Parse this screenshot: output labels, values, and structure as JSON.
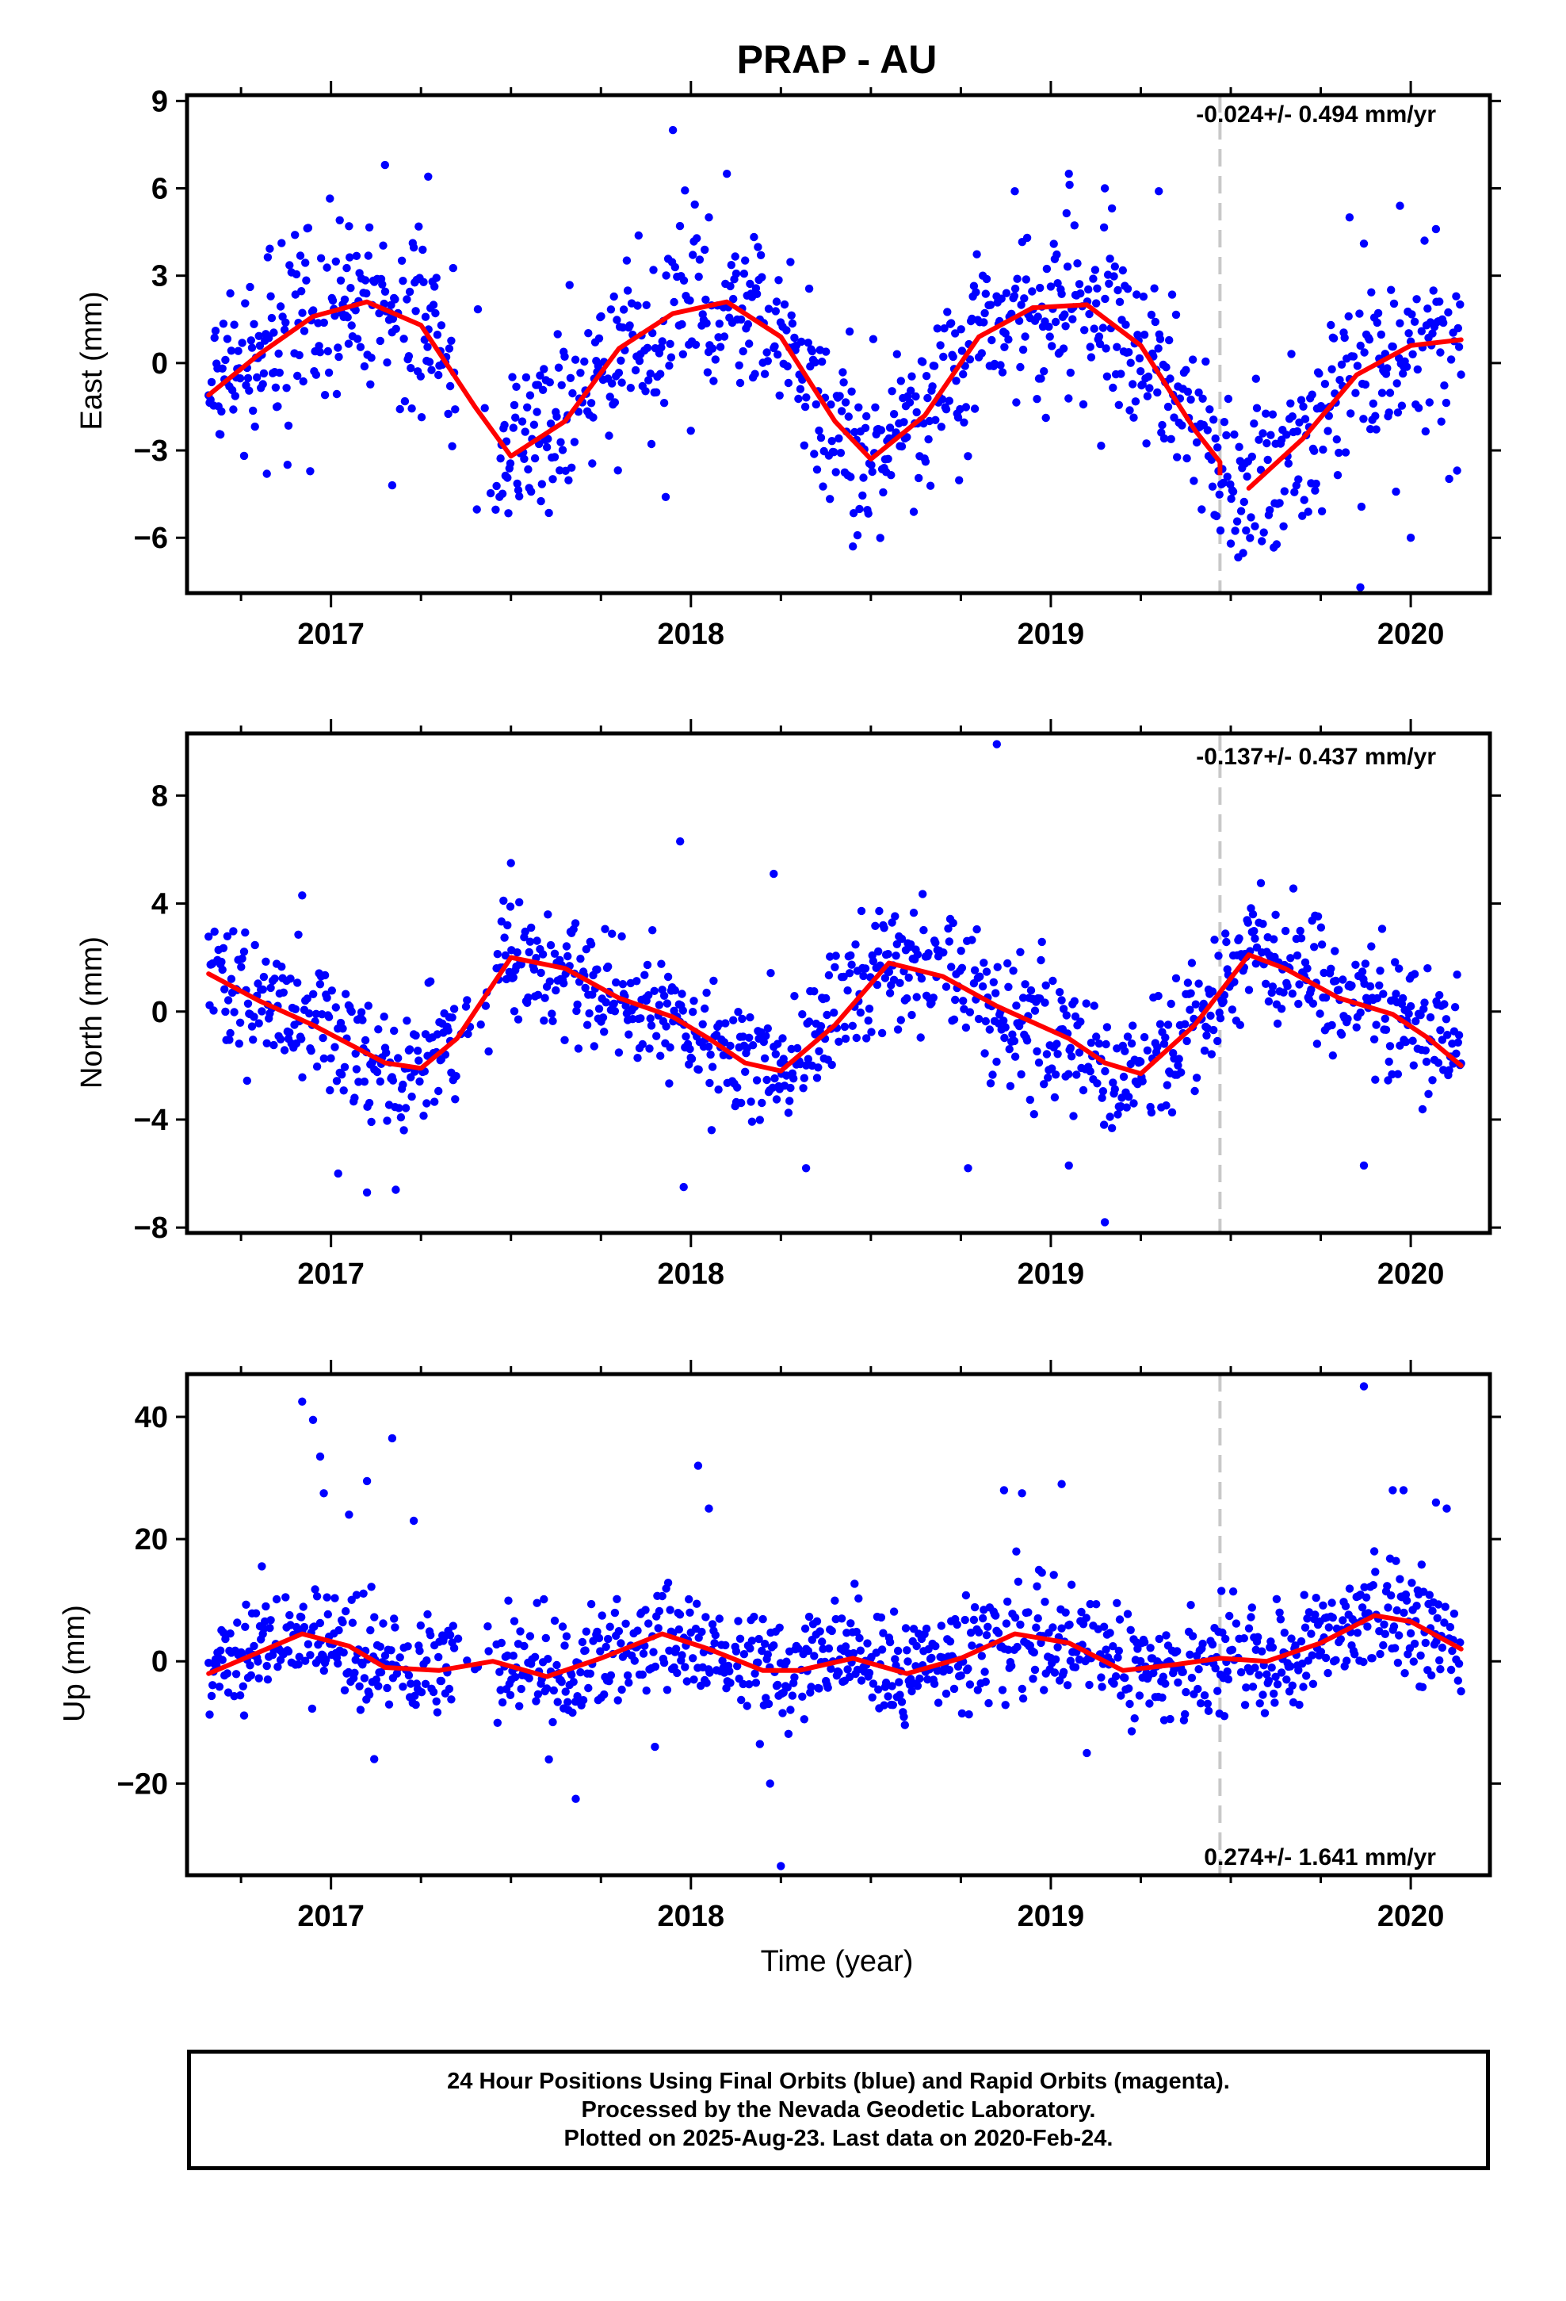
{
  "title": "PRAP - AU",
  "xlabel": "Time (year)",
  "x_ticks": [
    "2017",
    "2018",
    "2019",
    "2020"
  ],
  "footer": {
    "line1": "24 Hour Positions Using Final Orbits (blue) and Rapid Orbits (magenta).",
    "line2": "Processed by the Nevada Geodetic Laboratory.",
    "line3": "Plotted on 2025-Aug-23. Last data on 2020-Feb-24."
  },
  "colors": {
    "points": "#0000ff",
    "fit": "#ff0000",
    "equipment_change_line": "#c8c8c8"
  },
  "equipment_change_year": 2019.47,
  "chart_data": [
    {
      "type": "scatter",
      "ylabel": "East (mm)",
      "rate_label": "-0.024+/- 0.494 mm/yr",
      "xlim": [
        2016.6,
        2020.22
      ],
      "ylim": [
        -7.9,
        9.2
      ],
      "y_ticks": [
        9,
        6,
        3,
        0,
        -3,
        -6
      ],
      "y_tick_labels": [
        "9",
        "6",
        "3",
        "0",
        "−3",
        "−6"
      ],
      "grid": false,
      "seasonal_fit": {
        "x": [
          2016.66,
          2016.8,
          2016.95,
          2017.1,
          2017.25,
          2017.4,
          2017.5,
          2017.65,
          2017.8,
          2017.95,
          2018.1,
          2018.25,
          2018.4,
          2018.5,
          2018.65,
          2018.8,
          2018.95,
          2019.1,
          2019.25,
          2019.4,
          2019.47,
          2019.55,
          2019.7,
          2019.85,
          2020.0,
          2020.14
        ],
        "y": [
          -1.1,
          0.3,
          1.6,
          2.1,
          1.3,
          -1.5,
          -3.2,
          -2.0,
          0.5,
          1.7,
          2.1,
          0.9,
          -2.0,
          -3.3,
          -1.8,
          0.9,
          1.9,
          2.0,
          0.6,
          -2.3,
          -3.4,
          -4.3,
          -2.6,
          -0.4,
          0.6,
          0.8
        ],
        "break_x": 2019.47
      },
      "outliers": {
        "x": [
          2016.9,
          2017.05,
          2017.15,
          2017.27,
          2017.95,
          2018.05,
          2018.1,
          2018.9,
          2019.05,
          2019.15,
          2019.3,
          2019.83,
          2019.87,
          2019.97,
          2020.07,
          2017.17,
          2017.93,
          2018.45,
          2019.5,
          2019.86,
          2020.0
        ],
        "y": [
          4.4,
          4.7,
          6.8,
          6.4,
          8.0,
          5.0,
          6.5,
          5.9,
          6.5,
          6.0,
          5.9,
          5.0,
          4.1,
          5.4,
          4.6,
          -4.2,
          -4.6,
          -6.3,
          -6.2,
          -7.7,
          -6.0
        ]
      }
    },
    {
      "type": "scatter",
      "ylabel": "North (mm)",
      "rate_label": "-0.137+/- 0.437 mm/yr",
      "xlim": [
        2016.6,
        2020.22
      ],
      "ylim": [
        -8.2,
        10.3
      ],
      "y_ticks": [
        8,
        4,
        0,
        -4,
        -8
      ],
      "y_tick_labels": [
        "8",
        "4",
        "0",
        "−4",
        "−8"
      ],
      "grid": false,
      "seasonal_fit": {
        "x": [
          2016.66,
          2016.8,
          2016.95,
          2017.05,
          2017.15,
          2017.25,
          2017.35,
          2017.5,
          2017.65,
          2017.8,
          2017.95,
          2018.05,
          2018.15,
          2018.25,
          2018.4,
          2018.55,
          2018.7,
          2018.85,
          2018.95,
          2019.05,
          2019.15,
          2019.25,
          2019.4,
          2019.55,
          2019.65,
          2019.8,
          2019.95,
          2020.05,
          2020.14
        ],
        "y": [
          1.4,
          0.4,
          -0.5,
          -1.2,
          -1.9,
          -2.1,
          -1.0,
          2.0,
          1.6,
          0.5,
          -0.2,
          -1.0,
          -1.9,
          -2.2,
          -0.5,
          1.8,
          1.3,
          0.2,
          -0.4,
          -1.0,
          -1.9,
          -2.3,
          -0.5,
          2.1,
          1.6,
          0.5,
          -0.1,
          -1.0,
          -2.0
        ]
      },
      "outliers": {
        "x": [
          2016.92,
          2017.5,
          2017.97,
          2018.23,
          2018.85,
          2017.02,
          2017.1,
          2017.18,
          2017.98,
          2018.32,
          2018.77,
          2019.05,
          2019.15,
          2019.87
        ],
        "y": [
          4.3,
          5.5,
          6.3,
          5.1,
          9.9,
          -6.0,
          -6.7,
          -6.6,
          -6.5,
          -5.8,
          -5.8,
          -5.7,
          -7.8,
          -5.7
        ]
      }
    },
    {
      "type": "scatter",
      "ylabel": "Up (mm)",
      "rate_label": "0.274+/- 1.641 mm/yr",
      "xlim": [
        2016.6,
        2020.22
      ],
      "ylim": [
        -35,
        47
      ],
      "y_ticks": [
        40,
        20,
        0,
        -20
      ],
      "y_tick_labels": [
        "40",
        "20",
        "0",
        "−20"
      ],
      "grid": false,
      "seasonal_fit": {
        "x": [
          2016.66,
          2016.8,
          2016.92,
          2017.05,
          2017.15,
          2017.3,
          2017.45,
          2017.6,
          2017.75,
          2017.92,
          2018.05,
          2018.2,
          2018.3,
          2018.45,
          2018.6,
          2018.75,
          2018.9,
          2019.05,
          2019.2,
          2019.35,
          2019.47,
          2019.6,
          2019.75,
          2019.9,
          2020.0,
          2020.14
        ],
        "y": [
          -2.0,
          1.5,
          4.5,
          2.5,
          -1.0,
          -1.5,
          0.0,
          -2.5,
          0.5,
          4.5,
          2.0,
          -1.5,
          -1.5,
          0.5,
          -2.0,
          0.5,
          4.5,
          3.0,
          -1.5,
          -0.5,
          0.5,
          0.0,
          3.0,
          7.5,
          6.5,
          2.0
        ]
      },
      "outliers": {
        "x": [
          2016.92,
          2016.95,
          2016.97,
          2016.98,
          2017.1,
          2017.17,
          2017.23,
          2017.05,
          2017.68,
          2018.02,
          2018.05,
          2018.22,
          2018.25,
          2018.87,
          2018.92,
          2019.03,
          2019.87,
          2019.95,
          2019.98,
          2020.07,
          2020.1,
          2017.12,
          2017.9,
          2019.1
        ],
        "y": [
          42.5,
          39.5,
          33.5,
          27.5,
          29.5,
          36.5,
          23.0,
          24.0,
          -22.5,
          32.0,
          25.0,
          -20.0,
          -33.5,
          28.0,
          27.5,
          29.0,
          45.0,
          28.0,
          28.0,
          26.0,
          25.0,
          -16.0,
          -14.0,
          -15.0
        ]
      }
    }
  ]
}
